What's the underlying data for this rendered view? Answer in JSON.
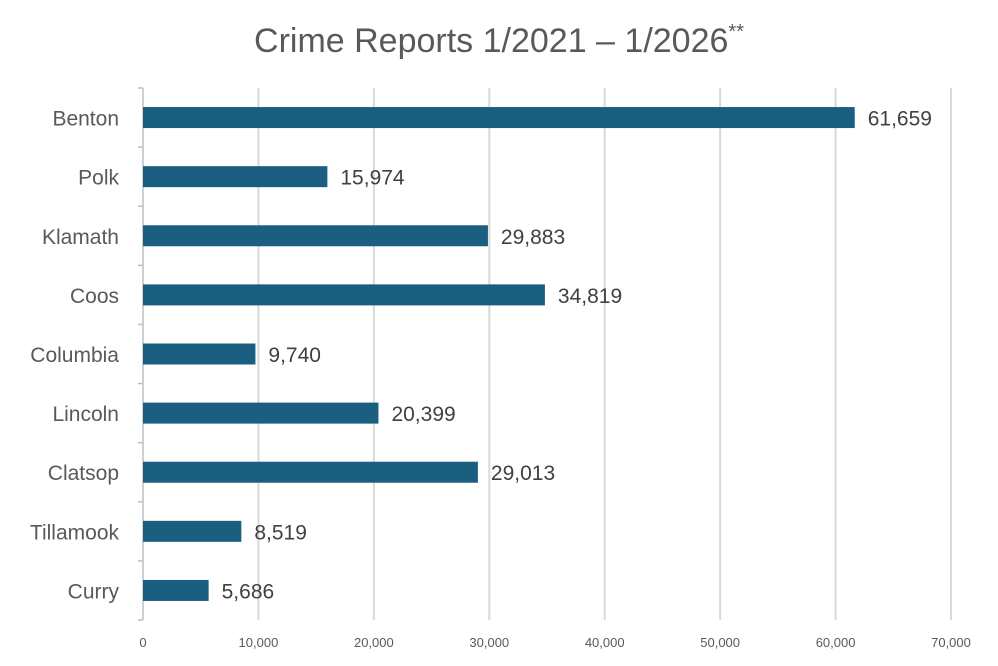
{
  "chart_data": {
    "type": "bar",
    "orientation": "horizontal",
    "title": "Crime Reports 1/2021 – 1/2026",
    "title_superscript": "**",
    "categories": [
      "Benton",
      "Polk",
      "Klamath",
      "Coos",
      "Columbia",
      "Lincoln",
      "Clatsop",
      "Tillamook",
      "Curry"
    ],
    "values": [
      61659,
      15974,
      29883,
      34819,
      9740,
      20399,
      29013,
      8519,
      5686
    ],
    "data_labels": [
      "61,659",
      "15,974",
      "29,883",
      "34,819",
      "9,740",
      "20,399",
      "29,013",
      "8,519",
      "5,686"
    ],
    "xlim": [
      0,
      70000
    ],
    "xticks": [
      0,
      10000,
      20000,
      30000,
      40000,
      50000,
      60000,
      70000
    ],
    "xtick_labels": [
      "0",
      "10,000",
      "20,000",
      "30,000",
      "40,000",
      "50,000",
      "60,000",
      "70,000"
    ],
    "xlabel": "",
    "ylabel": "",
    "grid": true,
    "legend": "none",
    "bar_color": "#1a5e80"
  }
}
